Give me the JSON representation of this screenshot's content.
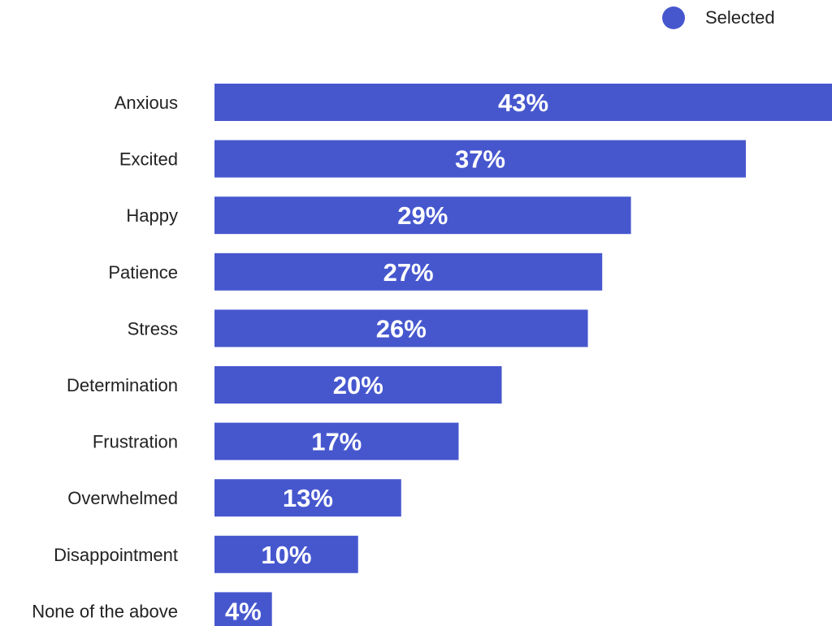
{
  "chart_data": {
    "type": "bar",
    "orientation": "horizontal",
    "categories": [
      "Anxious",
      "Excited",
      "Happy",
      "Patience",
      "Stress",
      "Determination",
      "Frustration",
      "Overwhelmed",
      "Disappointment",
      "None of the above"
    ],
    "series": [
      {
        "name": "Selected",
        "values": [
          43,
          37,
          29,
          27,
          26,
          20,
          17,
          13,
          10,
          4
        ]
      }
    ],
    "value_labels": [
      "43%",
      "37%",
      "29%",
      "27%",
      "26%",
      "20%",
      "17%",
      "13%",
      "10%",
      "4%"
    ],
    "unit": "%",
    "color": "#4657CE",
    "legend": {
      "position": "top-right",
      "label": "Selected"
    },
    "grid": false
  }
}
